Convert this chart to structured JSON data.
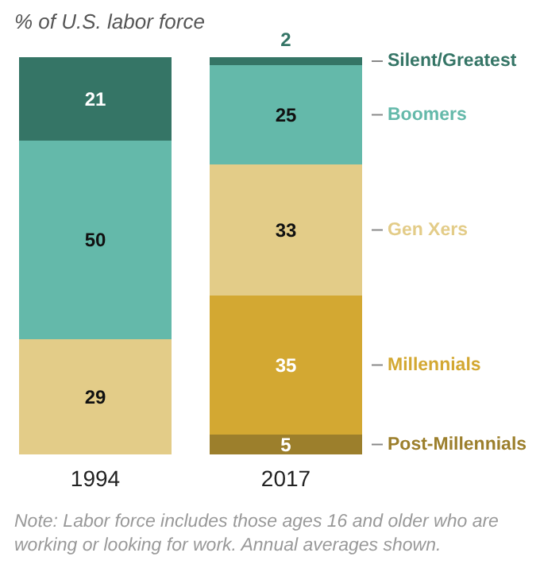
{
  "chart_data": {
    "type": "bar",
    "stacked": true,
    "title": "% of U.S. labor force",
    "annotations": [
      "Note: Labor force includes those ages 16 and older who are working or looking for work. Annual averages shown."
    ],
    "categories": [
      "1994",
      "2017"
    ],
    "ylim": [
      0,
      100
    ],
    "data_labels": true,
    "series": [
      {
        "name": "Post-Millennials",
        "color": "#9c7f2c",
        "values": [
          null,
          5
        ]
      },
      {
        "name": "Millennials",
        "color": "#d3a832",
        "values": [
          null,
          35
        ]
      },
      {
        "name": "Gen Xers",
        "color": "#e3cc88",
        "values": [
          29,
          33
        ]
      },
      {
        "name": "Boomers",
        "color": "#64b9aa",
        "values": [
          50,
          25
        ]
      },
      {
        "name": "Silent/Greatest",
        "color": "#357566",
        "values": [
          21,
          2
        ]
      }
    ]
  }
}
